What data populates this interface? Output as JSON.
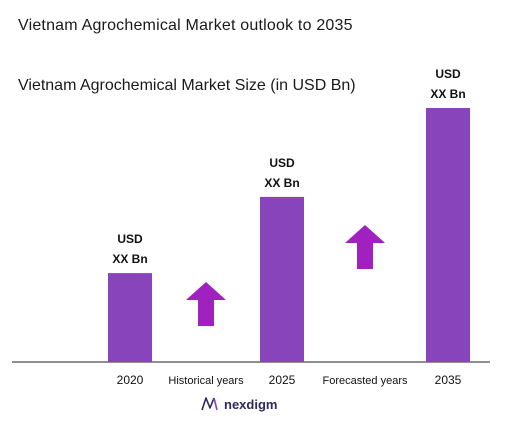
{
  "header": {
    "title": "Vietnam Agrochemical Market outlook to 2035"
  },
  "chart_data": {
    "type": "bar",
    "title": "Vietnam Agrochemical Market Size (in USD Bn)",
    "categories": [
      "2020",
      "2025",
      "2035"
    ],
    "values": [
      0.35,
      0.65,
      1.0
    ],
    "value_labels": [
      [
        "USD",
        "XX Bn"
      ],
      [
        "USD",
        "XX Bn"
      ],
      [
        "USD",
        "XX Bn"
      ]
    ],
    "ylim": [
      0,
      1
    ],
    "grid": false,
    "bar_color": "#8844bb",
    "annotations": [
      {
        "text": "Historical years",
        "between": [
          "2020",
          "2025"
        ]
      },
      {
        "text": "Forecasted years",
        "between": [
          "2025",
          "2035"
        ]
      }
    ],
    "arrow_color": "#a020c0"
  },
  "brand": {
    "name": "nexdigm"
  }
}
